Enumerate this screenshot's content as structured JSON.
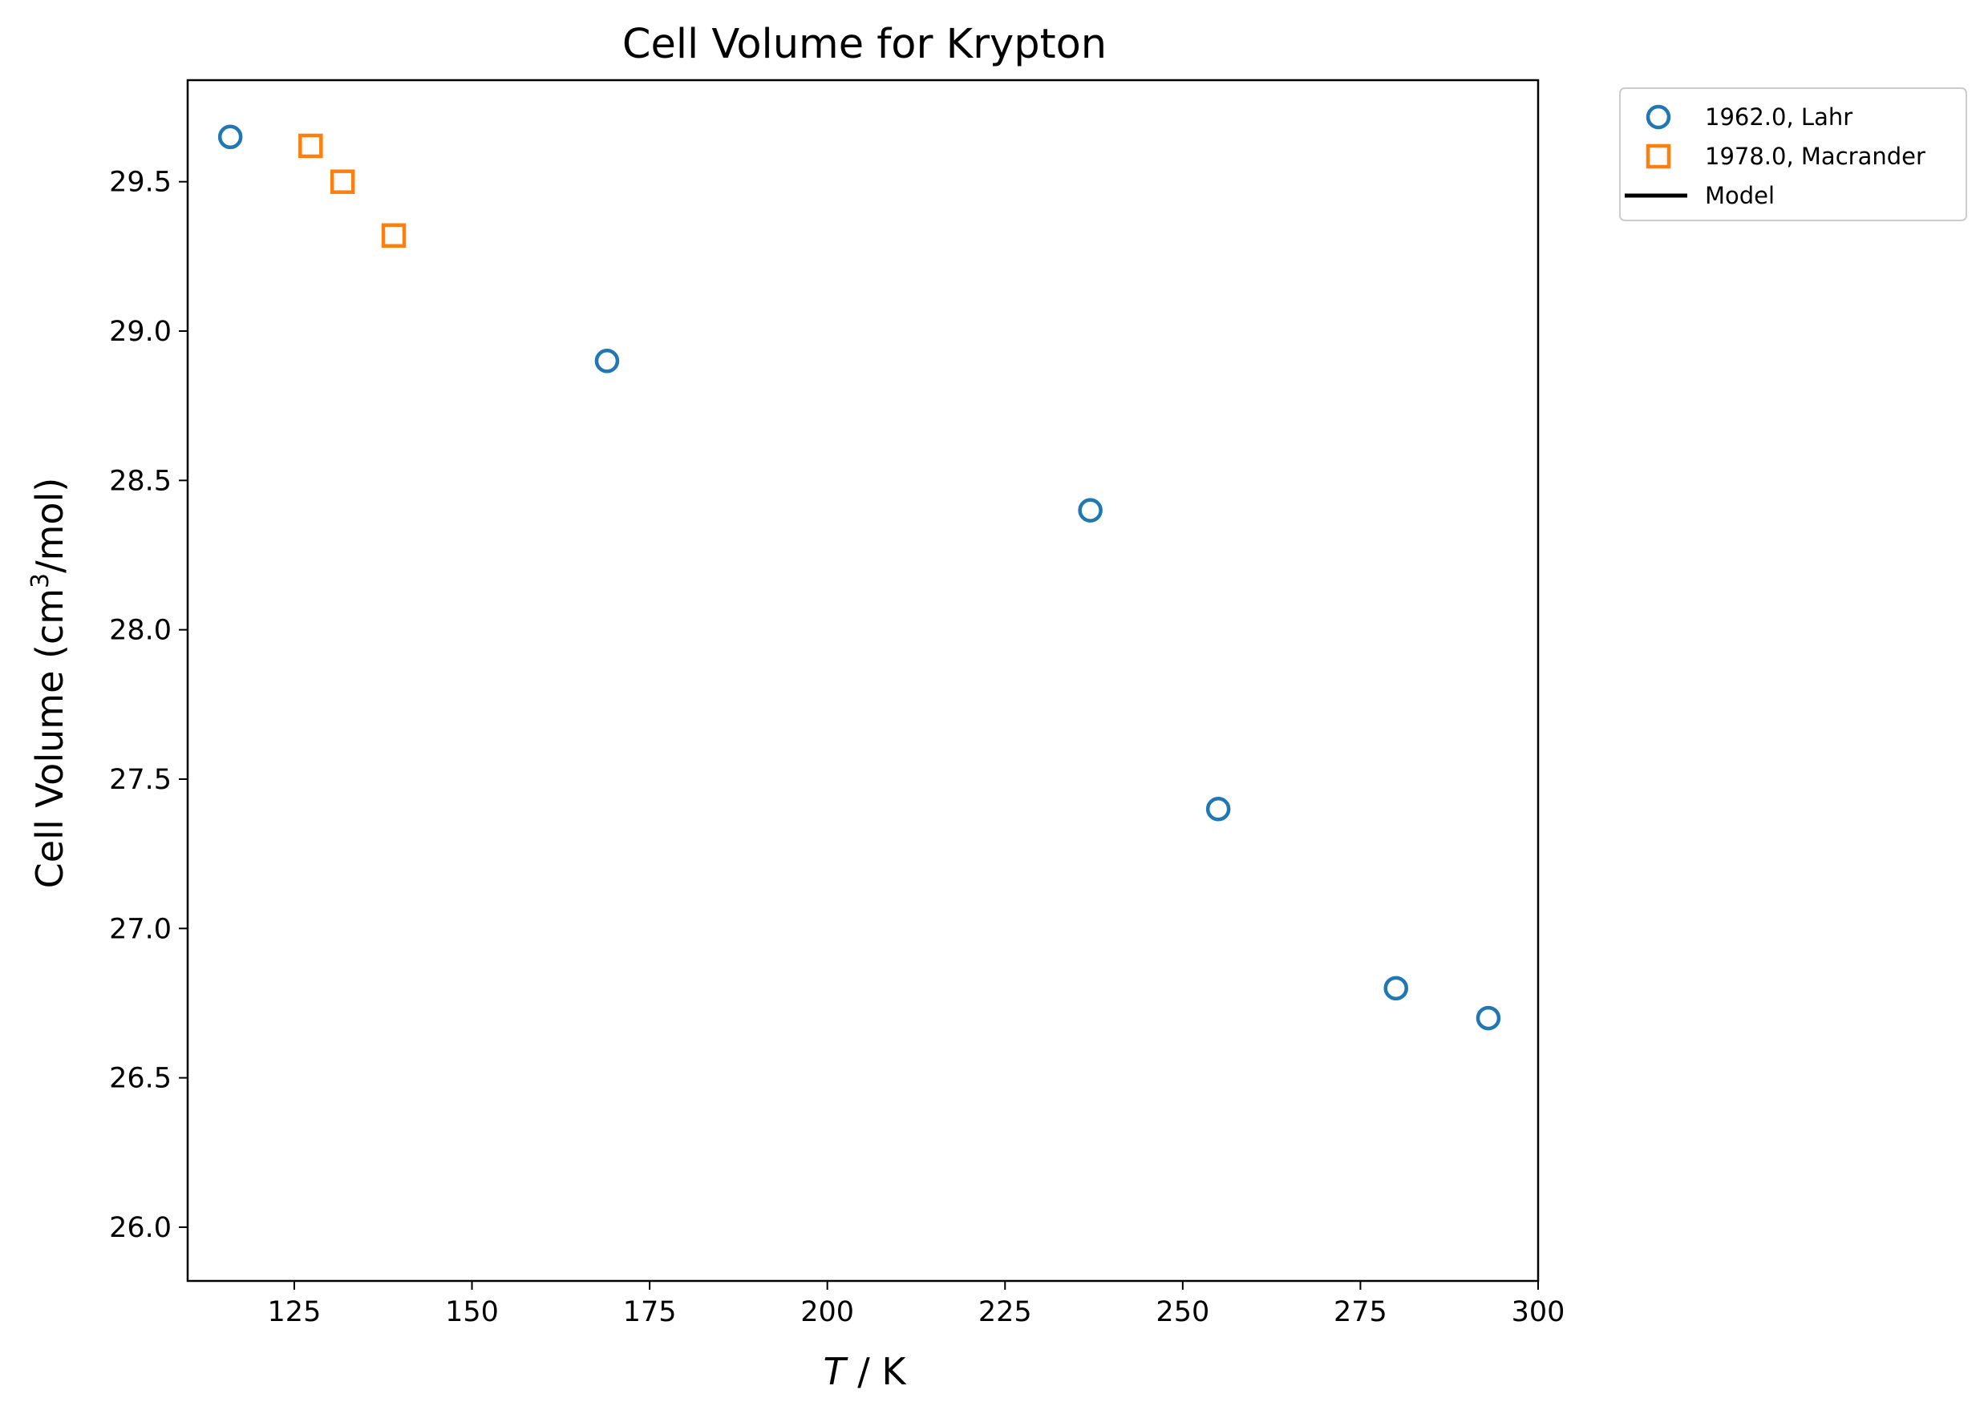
{
  "chart_data": {
    "type": "scatter",
    "title": "Cell Volume for Krypton",
    "xlabel": {
      "italic": "T",
      "rest": " / K"
    },
    "ylabel": {
      "base": "Cell Volume (cm",
      "sup": "3",
      "tail": "/mol)"
    },
    "xlim": [
      110,
      300
    ],
    "ylim": [
      25.82,
      29.84
    ],
    "xticks": [
      125,
      150,
      175,
      200,
      225,
      250,
      275,
      300
    ],
    "yticks": [
      26.0,
      26.5,
      27.0,
      27.5,
      28.0,
      28.5,
      29.0,
      29.5
    ],
    "grid": false,
    "legend": {
      "placement": "outside-top-right",
      "entries": [
        {
          "label": "1962.0, Lahr",
          "kind": "circle",
          "color": "#1f77b4"
        },
        {
          "label": "1978.0, Macrander",
          "kind": "square",
          "color": "#ff7f0e"
        },
        {
          "label": "Model",
          "kind": "line",
          "color": "#000000"
        }
      ]
    },
    "series": [
      {
        "name": "1962.0, Lahr",
        "marker": "circle",
        "color": "#1f77b4",
        "x": [
          116,
          169,
          237,
          255,
          280,
          293
        ],
        "y": [
          29.65,
          28.9,
          28.4,
          27.4,
          26.8,
          26.7
        ]
      },
      {
        "name": "1978.0, Macrander",
        "marker": "square",
        "color": "#ff7f0e",
        "x": [
          127.3,
          131.8,
          139
        ],
        "y": [
          29.62,
          29.5,
          29.32
        ]
      },
      {
        "name": "Model",
        "marker": "line",
        "color": "#000000",
        "x": [],
        "y": []
      }
    ]
  }
}
